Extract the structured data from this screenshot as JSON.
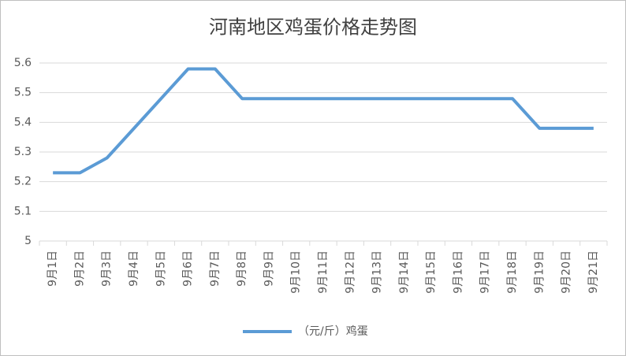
{
  "chart_data": {
    "type": "line",
    "title": "河南地区鸡蛋价格走势图",
    "categories": [
      "9月1日",
      "9月2日",
      "9月3日",
      "9月4日",
      "9月5日",
      "9月6日",
      "9月7日",
      "9月8日",
      "9月9日",
      "9月10日",
      "9月11日",
      "9月12日",
      "9月13日",
      "9月14日",
      "9月15日",
      "9月16日",
      "9月17日",
      "9月18日",
      "9月19日",
      "9月20日",
      "9月21日"
    ],
    "series": [
      {
        "name": "（元/斤）鸡蛋",
        "color": "#5b9bd5",
        "values": [
          5.23,
          5.23,
          5.28,
          5.38,
          5.48,
          5.58,
          5.58,
          5.48,
          5.48,
          5.48,
          5.48,
          5.48,
          5.48,
          5.48,
          5.48,
          5.48,
          5.48,
          5.48,
          5.38,
          5.38,
          5.38
        ]
      }
    ],
    "ylim": [
      5,
      5.6
    ],
    "yticks": [
      5,
      5.1,
      5.2,
      5.3,
      5.4,
      5.5,
      5.6
    ],
    "grid": true,
    "legend": "bottom"
  }
}
